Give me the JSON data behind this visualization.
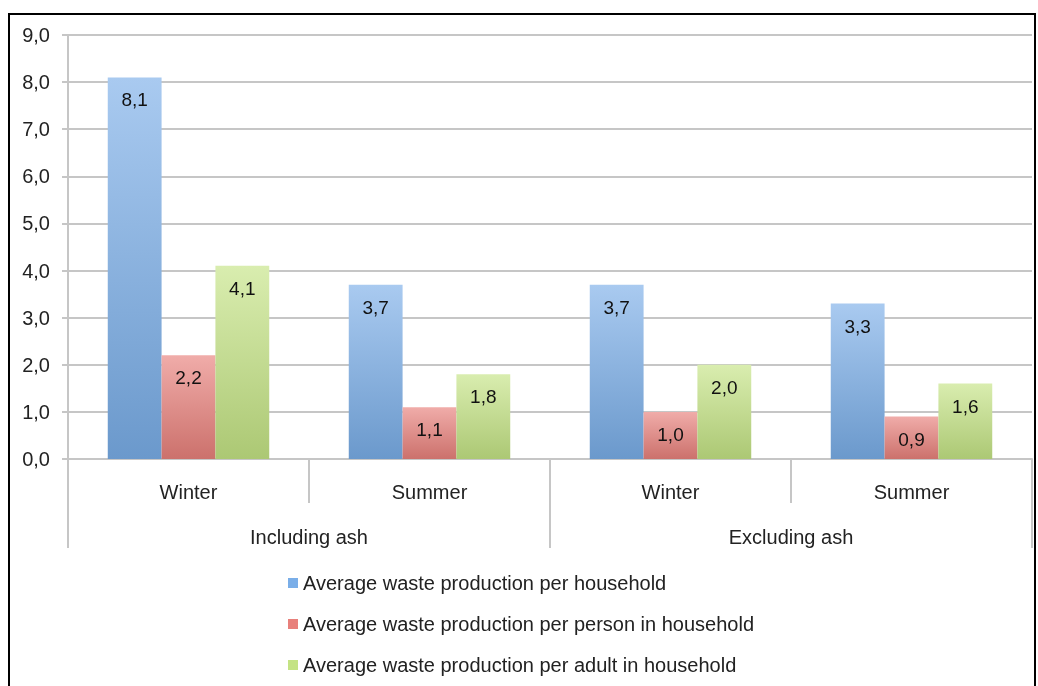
{
  "chart_data": {
    "type": "bar",
    "categories": [
      "Winter",
      "Summer",
      "Winter",
      "Summer"
    ],
    "series": [
      {
        "name": "Average waste production per household",
        "color": "#7aaee8",
        "values": [
          8.1,
          3.7,
          3.7,
          3.3
        ],
        "value_labels": [
          "8,1",
          "3,7",
          "3,7",
          "3,3"
        ]
      },
      {
        "name": "Average waste production per person in household",
        "color": "#e8807b",
        "values": [
          2.2,
          1.1,
          1.0,
          0.9
        ],
        "value_labels": [
          "2,2",
          "1,1",
          "1,0",
          "0,9"
        ]
      },
      {
        "name": "Average waste production per adult in household",
        "color": "#c4e384",
        "values": [
          4.1,
          1.8,
          2.0,
          1.6
        ],
        "value_labels": [
          "4,1",
          "1,8",
          "2,0",
          "1,6"
        ]
      }
    ],
    "ylim": [
      0,
      9
    ],
    "yticks": [
      {
        "value": 0,
        "label": "0,0"
      },
      {
        "value": 1,
        "label": "1,0"
      },
      {
        "value": 2,
        "label": "2,0"
      },
      {
        "value": 3,
        "label": "3,0"
      },
      {
        "value": 4,
        "label": "4,0"
      },
      {
        "value": 5,
        "label": "5,0"
      },
      {
        "value": 6,
        "label": "6,0"
      },
      {
        "value": 7,
        "label": "7,0"
      },
      {
        "value": 8,
        "label": "8,0"
      },
      {
        "value": 9,
        "label": "9,0"
      }
    ],
    "grid": "y",
    "legend": "bottom",
    "annotations": [
      "Including ash",
      "Excluding ash"
    ]
  }
}
